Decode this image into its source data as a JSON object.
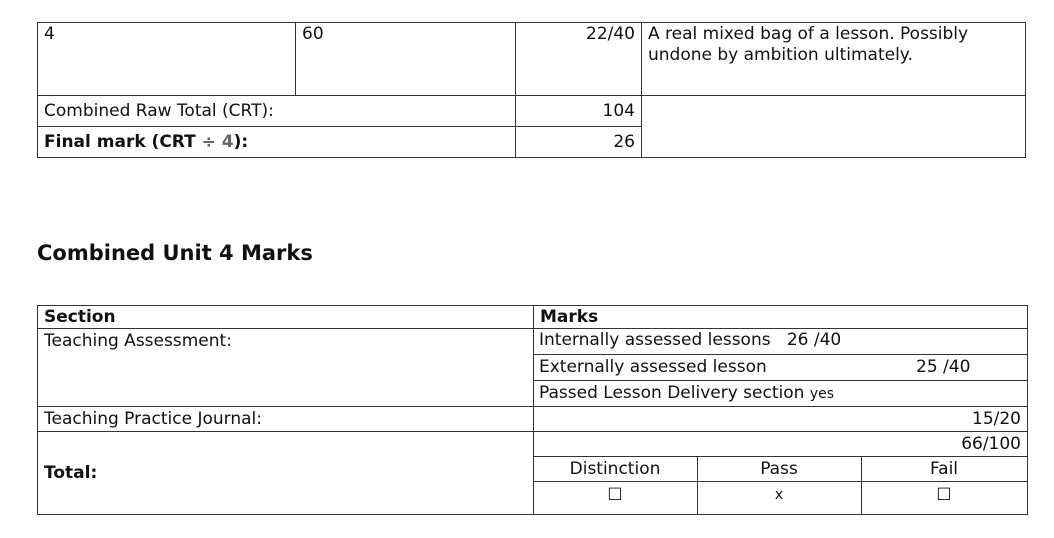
{
  "score_table": {
    "row": {
      "lesson": "4",
      "time": "60",
      "score": "22/40",
      "comment": "A real mixed bag of a lesson. Possibly undone by ambition ultimately."
    },
    "crt_label": "Combined Raw Total (CRT):",
    "crt_value": "104",
    "final_label": "Final mark (CRT ",
    "final_divide": "÷ 4",
    "final_suffix": "):",
    "final_value": "26"
  },
  "heading": "Combined Unit 4 Marks",
  "marks_table": {
    "headers": {
      "section": "Section",
      "marks": "Marks"
    },
    "teaching_assessment": {
      "label": "Teaching Assessment:",
      "internal_label": "Internally assessed lessons",
      "internal_value": "26 /40",
      "external_label": "Externally assessed lesson",
      "external_value": "25 /40",
      "passed_label": "Passed Lesson Delivery section",
      "passed_value": "yes"
    },
    "journal": {
      "label": "Teaching Practice Journal:",
      "value": "15/20"
    },
    "total": {
      "label": "Total:",
      "value": "66/100",
      "grades": [
        {
          "label": "Distinction",
          "mark": "☐"
        },
        {
          "label": "Pass",
          "mark": "x"
        },
        {
          "label": "Fail",
          "mark": "☐"
        }
      ]
    }
  }
}
